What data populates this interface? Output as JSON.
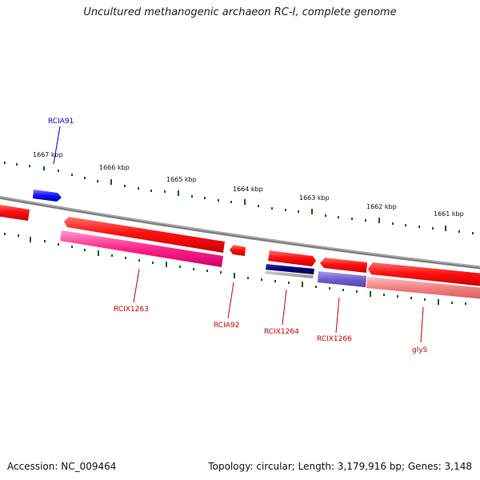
{
  "header": {
    "title": "Uncultured methanogenic archaeon RC-I, complete genome"
  },
  "footer": {
    "accession": "Accession: NC_009464",
    "summary": "Topology: circular; Length: 3,179,916 bp; Genes: 3,148"
  },
  "ticks": [
    {
      "label": "1667 kbp"
    },
    {
      "label": "1666 kbp"
    },
    {
      "label": "1665 kbp"
    },
    {
      "label": "1664 kbp"
    },
    {
      "label": "1663 kbp"
    },
    {
      "label": "1662 kbp"
    },
    {
      "label": "1661 kbp"
    }
  ],
  "genes": [
    {
      "label": "RCIA91",
      "color": "#0000cc"
    },
    {
      "label": "RCIX1263",
      "color": "#cc0000"
    },
    {
      "label": "RCIA92",
      "color": "#cc0000"
    },
    {
      "label": "RCIX1264",
      "color": "#cc0000"
    },
    {
      "label": "RCIX1266",
      "color": "#cc0000"
    },
    {
      "label": "glyS",
      "color": "#cc0000"
    }
  ],
  "colors": {
    "backbone": "#808080",
    "cds_red": "#ff1a1a",
    "pink": "#ff3399",
    "blue": "#1a1aff",
    "navy": "#000066",
    "slate": "#7766cc",
    "salmon": "#f08080",
    "tick_green": "#006600"
  }
}
